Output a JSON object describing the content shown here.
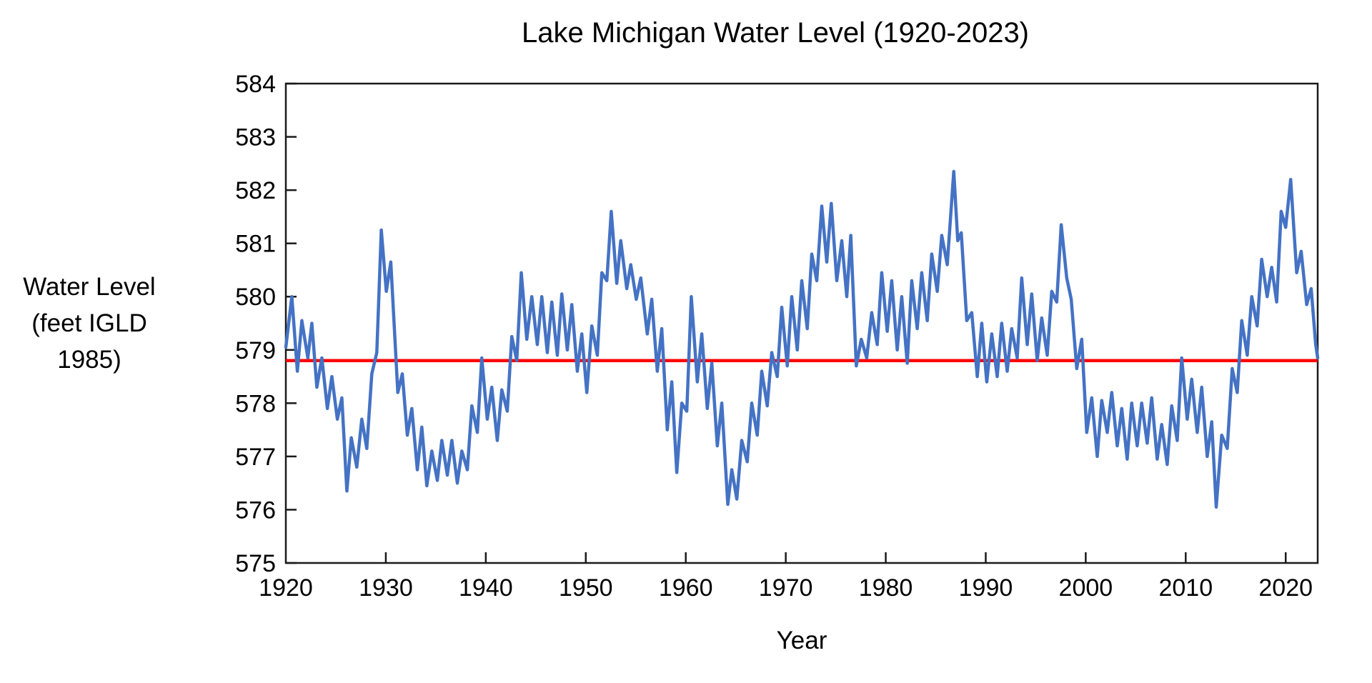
{
  "chart_data": {
    "type": "line",
    "title": "Lake Michigan Water Level (1920-2023)",
    "xlabel": "Year",
    "ylabel_lines": [
      "Water Level",
      "(feet IGLD",
      "1985)"
    ],
    "xlim": [
      1920,
      2023.2
    ],
    "ylim": [
      575,
      584
    ],
    "x_ticks": [
      1920,
      1930,
      1940,
      1950,
      1960,
      1970,
      1980,
      1990,
      2000,
      2010,
      2020
    ],
    "y_ticks": [
      575,
      576,
      577,
      578,
      579,
      580,
      581,
      582,
      583,
      584
    ],
    "grid": false,
    "legend": "none",
    "axis_color": "#1a1a1a",
    "text_color": "#000000",
    "reference_line": {
      "value": 578.8,
      "color": "#ff0000",
      "width": 4.5
    },
    "series": [
      {
        "color": "#4472C4",
        "width": 4.5,
        "points": [
          [
            1920.0,
            579.05
          ],
          [
            1920.6,
            580.0
          ],
          [
            1921.15,
            578.6
          ],
          [
            1921.6,
            579.55
          ],
          [
            1922.2,
            578.85
          ],
          [
            1922.6,
            579.5
          ],
          [
            1923.1,
            578.3
          ],
          [
            1923.6,
            578.85
          ],
          [
            1924.15,
            577.9
          ],
          [
            1924.6,
            578.5
          ],
          [
            1925.15,
            577.7
          ],
          [
            1925.6,
            578.1
          ],
          [
            1926.1,
            576.35
          ],
          [
            1926.55,
            577.35
          ],
          [
            1927.1,
            576.8
          ],
          [
            1927.6,
            577.7
          ],
          [
            1928.1,
            577.15
          ],
          [
            1928.6,
            578.55
          ],
          [
            1929.1,
            578.95
          ],
          [
            1929.55,
            581.25
          ],
          [
            1930.05,
            580.1
          ],
          [
            1930.5,
            580.65
          ],
          [
            1931.2,
            578.2
          ],
          [
            1931.65,
            578.55
          ],
          [
            1932.15,
            577.4
          ],
          [
            1932.6,
            577.9
          ],
          [
            1933.15,
            576.75
          ],
          [
            1933.6,
            577.55
          ],
          [
            1934.1,
            576.45
          ],
          [
            1934.6,
            577.1
          ],
          [
            1935.15,
            576.55
          ],
          [
            1935.6,
            577.3
          ],
          [
            1936.15,
            576.65
          ],
          [
            1936.6,
            577.3
          ],
          [
            1937.15,
            576.5
          ],
          [
            1937.6,
            577.1
          ],
          [
            1938.15,
            576.75
          ],
          [
            1938.6,
            577.95
          ],
          [
            1939.15,
            577.45
          ],
          [
            1939.6,
            578.85
          ],
          [
            1940.15,
            577.7
          ],
          [
            1940.6,
            578.3
          ],
          [
            1941.15,
            577.3
          ],
          [
            1941.6,
            578.25
          ],
          [
            1942.15,
            577.85
          ],
          [
            1942.6,
            579.25
          ],
          [
            1943.1,
            578.8
          ],
          [
            1943.55,
            580.45
          ],
          [
            1944.1,
            579.2
          ],
          [
            1944.6,
            580.0
          ],
          [
            1945.15,
            579.1
          ],
          [
            1945.6,
            580.0
          ],
          [
            1946.15,
            578.95
          ],
          [
            1946.6,
            579.9
          ],
          [
            1947.15,
            578.9
          ],
          [
            1947.6,
            580.05
          ],
          [
            1948.15,
            579.0
          ],
          [
            1948.6,
            579.85
          ],
          [
            1949.15,
            578.6
          ],
          [
            1949.6,
            579.3
          ],
          [
            1950.1,
            578.2
          ],
          [
            1950.6,
            579.45
          ],
          [
            1951.15,
            578.9
          ],
          [
            1951.6,
            580.45
          ],
          [
            1952.1,
            580.3
          ],
          [
            1952.55,
            581.6
          ],
          [
            1953.1,
            580.25
          ],
          [
            1953.5,
            581.05
          ],
          [
            1954.1,
            580.15
          ],
          [
            1954.5,
            580.6
          ],
          [
            1955.05,
            579.95
          ],
          [
            1955.5,
            580.35
          ],
          [
            1956.15,
            579.3
          ],
          [
            1956.6,
            579.95
          ],
          [
            1957.15,
            578.6
          ],
          [
            1957.6,
            579.4
          ],
          [
            1958.15,
            577.5
          ],
          [
            1958.6,
            578.4
          ],
          [
            1959.1,
            576.7
          ],
          [
            1959.6,
            578.0
          ],
          [
            1960.1,
            577.85
          ],
          [
            1960.55,
            580.0
          ],
          [
            1961.15,
            578.4
          ],
          [
            1961.6,
            579.3
          ],
          [
            1962.15,
            577.9
          ],
          [
            1962.6,
            578.75
          ],
          [
            1963.15,
            577.2
          ],
          [
            1963.6,
            578.0
          ],
          [
            1964.2,
            576.1
          ],
          [
            1964.6,
            576.75
          ],
          [
            1965.1,
            576.2
          ],
          [
            1965.6,
            577.3
          ],
          [
            1966.15,
            576.9
          ],
          [
            1966.6,
            578.0
          ],
          [
            1967.15,
            577.4
          ],
          [
            1967.6,
            578.6
          ],
          [
            1968.15,
            577.95
          ],
          [
            1968.6,
            578.95
          ],
          [
            1969.15,
            578.5
          ],
          [
            1969.6,
            579.8
          ],
          [
            1970.15,
            578.7
          ],
          [
            1970.6,
            580.0
          ],
          [
            1971.15,
            579.0
          ],
          [
            1971.6,
            580.3
          ],
          [
            1972.15,
            579.4
          ],
          [
            1972.6,
            580.8
          ],
          [
            1973.1,
            580.3
          ],
          [
            1973.6,
            581.7
          ],
          [
            1974.1,
            580.65
          ],
          [
            1974.55,
            581.75
          ],
          [
            1975.1,
            580.3
          ],
          [
            1975.6,
            581.05
          ],
          [
            1976.1,
            580.0
          ],
          [
            1976.5,
            581.15
          ],
          [
            1977.05,
            578.7
          ],
          [
            1977.55,
            579.2
          ],
          [
            1978.1,
            578.85
          ],
          [
            1978.6,
            579.7
          ],
          [
            1979.15,
            579.1
          ],
          [
            1979.6,
            580.45
          ],
          [
            1980.15,
            579.35
          ],
          [
            1980.6,
            580.3
          ],
          [
            1981.15,
            579.0
          ],
          [
            1981.6,
            580.0
          ],
          [
            1982.15,
            578.75
          ],
          [
            1982.6,
            580.3
          ],
          [
            1983.15,
            579.4
          ],
          [
            1983.6,
            580.45
          ],
          [
            1984.15,
            579.55
          ],
          [
            1984.6,
            580.8
          ],
          [
            1985.15,
            580.1
          ],
          [
            1985.6,
            581.15
          ],
          [
            1986.15,
            580.6
          ],
          [
            1986.8,
            582.35
          ],
          [
            1987.2,
            581.05
          ],
          [
            1987.55,
            581.2
          ],
          [
            1988.1,
            579.55
          ],
          [
            1988.6,
            579.7
          ],
          [
            1989.15,
            578.5
          ],
          [
            1989.6,
            579.5
          ],
          [
            1990.1,
            578.4
          ],
          [
            1990.6,
            579.3
          ],
          [
            1991.15,
            578.5
          ],
          [
            1991.6,
            579.5
          ],
          [
            1992.15,
            578.6
          ],
          [
            1992.6,
            579.4
          ],
          [
            1993.15,
            578.85
          ],
          [
            1993.6,
            580.35
          ],
          [
            1994.15,
            579.1
          ],
          [
            1994.6,
            580.05
          ],
          [
            1995.15,
            578.8
          ],
          [
            1995.6,
            579.6
          ],
          [
            1996.15,
            578.9
          ],
          [
            1996.6,
            580.1
          ],
          [
            1997.1,
            579.9
          ],
          [
            1997.55,
            581.35
          ],
          [
            1998.1,
            580.35
          ],
          [
            1998.55,
            579.95
          ],
          [
            1999.1,
            578.65
          ],
          [
            1999.6,
            579.2
          ],
          [
            2000.1,
            577.45
          ],
          [
            2000.6,
            578.1
          ],
          [
            2001.15,
            577.0
          ],
          [
            2001.6,
            578.05
          ],
          [
            2002.15,
            577.45
          ],
          [
            2002.6,
            578.2
          ],
          [
            2003.15,
            577.2
          ],
          [
            2003.6,
            577.9
          ],
          [
            2004.15,
            576.95
          ],
          [
            2004.6,
            578.0
          ],
          [
            2005.15,
            577.2
          ],
          [
            2005.6,
            578.0
          ],
          [
            2006.15,
            577.25
          ],
          [
            2006.6,
            578.1
          ],
          [
            2007.15,
            576.95
          ],
          [
            2007.6,
            577.6
          ],
          [
            2008.15,
            576.85
          ],
          [
            2008.6,
            577.95
          ],
          [
            2009.15,
            577.3
          ],
          [
            2009.6,
            578.85
          ],
          [
            2010.15,
            577.7
          ],
          [
            2010.6,
            578.45
          ],
          [
            2011.15,
            577.45
          ],
          [
            2011.6,
            578.3
          ],
          [
            2012.15,
            577.0
          ],
          [
            2012.6,
            577.65
          ],
          [
            2013.05,
            576.05
          ],
          [
            2013.6,
            577.4
          ],
          [
            2014.15,
            577.15
          ],
          [
            2014.65,
            578.65
          ],
          [
            2015.15,
            578.2
          ],
          [
            2015.6,
            579.55
          ],
          [
            2016.15,
            578.9
          ],
          [
            2016.6,
            580.0
          ],
          [
            2017.15,
            579.45
          ],
          [
            2017.6,
            580.7
          ],
          [
            2018.15,
            580.0
          ],
          [
            2018.6,
            580.55
          ],
          [
            2019.1,
            579.9
          ],
          [
            2019.55,
            581.6
          ],
          [
            2020.0,
            581.3
          ],
          [
            2020.5,
            582.2
          ],
          [
            2021.1,
            580.45
          ],
          [
            2021.55,
            580.85
          ],
          [
            2022.1,
            579.85
          ],
          [
            2022.55,
            580.15
          ],
          [
            2023.0,
            579.1
          ],
          [
            2023.2,
            578.85
          ]
        ]
      }
    ]
  }
}
